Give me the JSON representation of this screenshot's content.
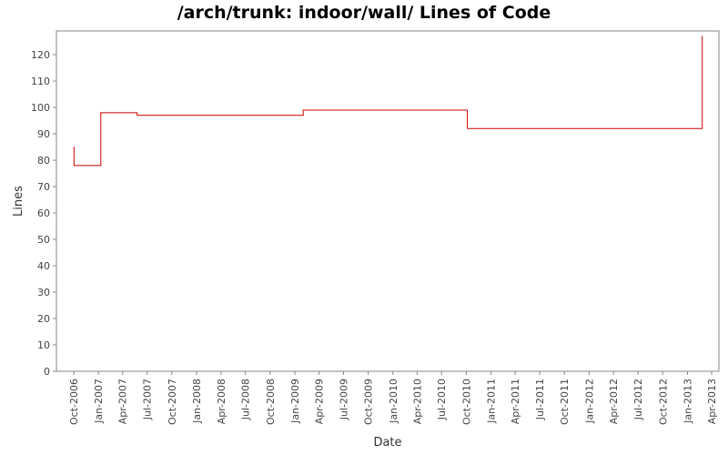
{
  "chart_data": {
    "type": "line",
    "title": "/arch/trunk: indoor/wall/ Lines of Code",
    "xlabel": "Date",
    "ylabel": "Lines",
    "x_ticks": [
      "Oct-2006",
      "Jan-2007",
      "Apr-2007",
      "Jul-2007",
      "Oct-2007",
      "Jan-2008",
      "Apr-2008",
      "Jul-2008",
      "Oct-2008",
      "Jan-2009",
      "Apr-2009",
      "Jul-2009",
      "Oct-2009",
      "Jan-2010",
      "Apr-2010",
      "Jul-2010",
      "Oct-2010",
      "Jan-2011",
      "Apr-2011",
      "Jul-2011",
      "Oct-2011",
      "Jan-2012",
      "Apr-2012",
      "Jul-2012",
      "Oct-2012",
      "Jan-2013",
      "Apr-2013"
    ],
    "y_ticks": [
      0,
      10,
      20,
      30,
      40,
      50,
      60,
      70,
      80,
      90,
      100,
      110,
      120
    ],
    "ylim": [
      0,
      129
    ],
    "grid": false,
    "legend": "none",
    "line_color": "#cc0000",
    "series": [
      {
        "step": "post",
        "points": [
          {
            "x": "2006-10-01",
            "y": 85
          },
          {
            "x": "2006-10-02",
            "y": 78
          },
          {
            "x": "2007-01-10",
            "y": 98
          },
          {
            "x": "2007-05-25",
            "y": 97
          },
          {
            "x": "2009-02-01",
            "y": 99
          },
          {
            "x": "2010-10-05",
            "y": 92
          },
          {
            "x": "2013-02-25",
            "y": 127
          }
        ]
      }
    ]
  }
}
